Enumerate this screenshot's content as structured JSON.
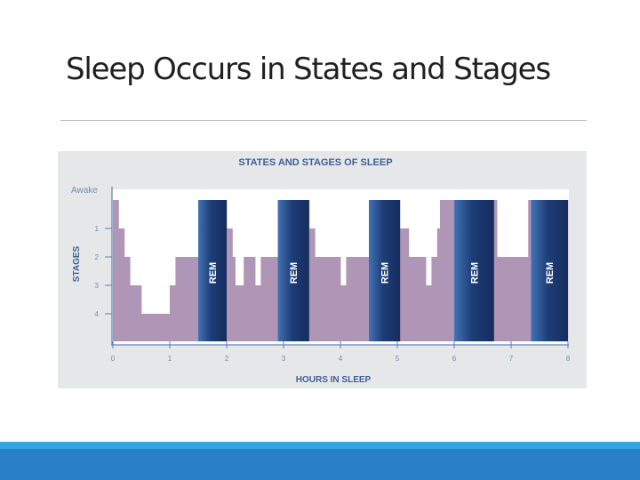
{
  "slide": {
    "title": "Sleep Occurs in States and Stages"
  },
  "colors": {
    "non_rem_fill": "#b096b6",
    "rem_fill": "#1d3d78",
    "axis": "#5b7fb4",
    "chart_title": "#3f5f94",
    "stage_label": "#6f8db8",
    "accent_band": "#2a80c8",
    "accent_band_light": "#35a4df"
  },
  "chart_data": {
    "type": "area",
    "title": "STATES AND STAGES OF SLEEP",
    "xlabel": "HOURS IN SLEEP",
    "ylabel": "STAGES",
    "xlim": [
      0,
      8
    ],
    "x_ticks": [
      "0",
      "1",
      "2",
      "3",
      "4",
      "5",
      "6",
      "7",
      "8"
    ],
    "y_categories": [
      "Awake",
      "1",
      "2",
      "3",
      "4"
    ],
    "hypnogram_steps": [
      {
        "x_start": 0,
        "x_end": 0.1,
        "stage": 0
      },
      {
        "x_start": 0.1,
        "x_end": 0.2,
        "stage": 1
      },
      {
        "x_start": 0.2,
        "x_end": 0.3,
        "stage": 2
      },
      {
        "x_start": 0.3,
        "x_end": 0.5,
        "stage": 3
      },
      {
        "x_start": 0.5,
        "x_end": 1.0,
        "stage": 4
      },
      {
        "x_start": 1.0,
        "x_end": 1.1,
        "stage": 3
      },
      {
        "x_start": 1.1,
        "x_end": 1.5,
        "stage": 2
      },
      {
        "x_start": 1.5,
        "x_end": 2.0,
        "stage": 0
      },
      {
        "x_start": 2.0,
        "x_end": 2.1,
        "stage": 1
      },
      {
        "x_start": 2.1,
        "x_end": 2.15,
        "stage": 2
      },
      {
        "x_start": 2.15,
        "x_end": 2.3,
        "stage": 3
      },
      {
        "x_start": 2.3,
        "x_end": 2.5,
        "stage": 2
      },
      {
        "x_start": 2.5,
        "x_end": 2.6,
        "stage": 3
      },
      {
        "x_start": 2.6,
        "x_end": 2.9,
        "stage": 2
      },
      {
        "x_start": 2.9,
        "x_end": 3.45,
        "stage": 0
      },
      {
        "x_start": 3.45,
        "x_end": 3.55,
        "stage": 1
      },
      {
        "x_start": 3.55,
        "x_end": 4.0,
        "stage": 2
      },
      {
        "x_start": 4.0,
        "x_end": 4.1,
        "stage": 3
      },
      {
        "x_start": 4.1,
        "x_end": 4.5,
        "stage": 2
      },
      {
        "x_start": 4.5,
        "x_end": 5.0,
        "stage": 0
      },
      {
        "x_start": 5.0,
        "x_end": 5.2,
        "stage": 1
      },
      {
        "x_start": 5.2,
        "x_end": 5.5,
        "stage": 2
      },
      {
        "x_start": 5.5,
        "x_end": 5.6,
        "stage": 3
      },
      {
        "x_start": 5.6,
        "x_end": 5.7,
        "stage": 2
      },
      {
        "x_start": 5.7,
        "x_end": 5.75,
        "stage": 1
      },
      {
        "x_start": 5.75,
        "x_end": 6.55,
        "stage": 0
      },
      {
        "x_start": 6.55,
        "x_end": 6.65,
        "stage": 1
      },
      {
        "x_start": 6.65,
        "x_end": 6.75,
        "stage": 0
      },
      {
        "x_start": 6.75,
        "x_end": 7.0,
        "stage": 2
      },
      {
        "x_start": 7.0,
        "x_end": 7.3,
        "stage": 2
      },
      {
        "x_start": 7.3,
        "x_end": 8.0,
        "stage": 0
      }
    ],
    "rem_periods": [
      {
        "label": "REM",
        "start": 1.5,
        "end": 2.0
      },
      {
        "label": "REM",
        "start": 2.9,
        "end": 3.45
      },
      {
        "label": "REM",
        "start": 4.5,
        "end": 5.05
      },
      {
        "label": "REM",
        "start": 6.0,
        "end": 6.7
      },
      {
        "label": "REM",
        "start": 7.35,
        "end": 8.0
      }
    ]
  }
}
